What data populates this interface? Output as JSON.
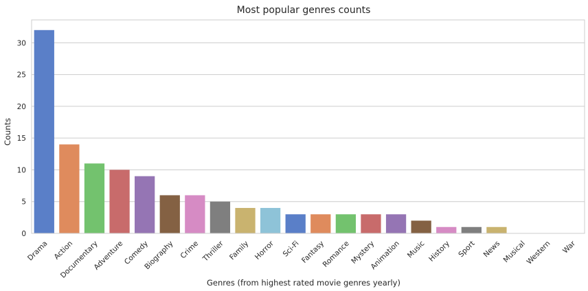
{
  "chart_data": {
    "type": "bar",
    "title": "Most popular genres counts",
    "xlabel": "Genres (from highest rated movie genres yearly)",
    "ylabel": "Counts",
    "categories": [
      "Drama",
      "Action",
      "Documentary",
      "Adventure",
      "Comedy",
      "Biography",
      "Crime",
      "Thriller",
      "Family",
      "Horror",
      "Sci-Fi",
      "Fantasy",
      "Romance",
      "Mystery",
      "Animation",
      "Music",
      "History",
      "Sport",
      "News",
      "Musical",
      "Western",
      "War"
    ],
    "values": [
      32,
      14,
      11,
      10,
      9,
      6,
      6,
      5,
      4,
      4,
      3,
      3,
      3,
      3,
      3,
      2,
      1,
      1,
      1,
      0,
      0,
      0
    ],
    "colors": [
      "#5a7fc8",
      "#df8b5d",
      "#73c26e",
      "#c86b6b",
      "#9575b4",
      "#846143",
      "#d68bc4",
      "#7f7f7f",
      "#c9b36f",
      "#8ec3d8",
      "#5a7fc8",
      "#df8b5d",
      "#73c26e",
      "#c86b6b",
      "#9575b4",
      "#846143",
      "#d68bc4",
      "#7f7f7f",
      "#c9b36f",
      "#8ec3d8",
      "#5a7fc8",
      "#df8b5d"
    ],
    "ylim": [
      0,
      33.6
    ],
    "yticks": [
      0,
      5,
      10,
      15,
      20,
      25,
      30
    ],
    "grid": "horizontal",
    "legend": "none"
  }
}
